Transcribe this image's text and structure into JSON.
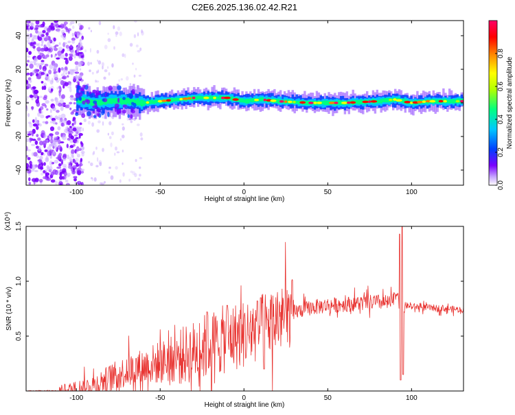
{
  "title": "C2E6.2025.136.02.42.R21",
  "colors": {
    "signal_line": "#e8312e",
    "spectrogram_scale": [
      "#ffffff",
      "#7a00ff",
      "#0040ff",
      "#00c8ff",
      "#00ff80",
      "#b0ff00",
      "#ffff00",
      "#ff8000",
      "#ff0000",
      "#ff0066"
    ]
  },
  "chart_data": [
    {
      "type": "heatmap",
      "subtype": "spectrogram",
      "xlabel": "Height of straight line (km)",
      "ylabel": "Frequency (Hz)",
      "xlim": [
        -130,
        131
      ],
      "ylim": [
        -49,
        49
      ],
      "x_ticks": [
        -100,
        -50,
        0,
        50,
        100
      ],
      "y_ticks": [
        -40,
        -20,
        0,
        20,
        40
      ],
      "colorbar": {
        "label": "Normalized spectral amplitude",
        "range": [
          0.0,
          1.0
        ],
        "ticks": [
          0.0,
          0.2,
          0.4,
          0.6,
          0.8
        ]
      },
      "ridge": {
        "frequency_hz": [
          [
            -100,
            2
          ],
          [
            -90,
            0
          ],
          [
            -80,
            1
          ],
          [
            -70,
            1
          ],
          [
            -60,
            0
          ],
          [
            -50,
            1
          ],
          [
            -40,
            2
          ],
          [
            -30,
            3
          ],
          [
            -20,
            3
          ],
          [
            -10,
            3
          ],
          [
            0,
            1
          ],
          [
            10,
            2
          ],
          [
            20,
            1
          ],
          [
            40,
            0
          ],
          [
            60,
            0
          ],
          [
            80,
            1
          ],
          [
            90,
            2
          ],
          [
            95,
            1
          ],
          [
            100,
            0
          ],
          [
            110,
            1
          ],
          [
            120,
            1
          ],
          [
            131,
            1
          ]
        ],
        "noise_region_below_km": -100
      }
    },
    {
      "type": "line",
      "xlabel": "Height of straight line (km)",
      "ylabel": "SNR (10 * v/v)",
      "y_multiplier": "(x10⁴)",
      "xlim": [
        -130,
        131
      ],
      "ylim": [
        0,
        1.5
      ],
      "x_ticks": [
        -100,
        -50,
        0,
        50,
        100
      ],
      "y_ticks": [
        0.5,
        1.0,
        1.5
      ],
      "series": [
        {
          "envelope": {
            "x": [
              -130,
              -110,
              -100,
              -90,
              -80,
              -70,
              -60,
              -50,
              -40,
              -30,
              -20,
              -10,
              0,
              10,
              20,
              30,
              40,
              50,
              60,
              70,
              80,
              88,
              90,
              92,
              93,
              94,
              95,
              96,
              100,
              110,
              120,
              131
            ],
            "y": [
              0.0,
              0.0,
              0.02,
              0.05,
              0.12,
              0.18,
              0.22,
              0.26,
              0.3,
              0.36,
              0.42,
              0.48,
              0.52,
              0.58,
              0.65,
              0.72,
              0.76,
              0.78,
              0.79,
              0.8,
              0.81,
              0.8,
              0.85,
              0.9,
              0.72,
              0.75,
              0.6,
              0.78,
              0.77,
              0.76,
              0.75,
              0.74
            ]
          },
          "spikes": [
            {
              "x": 93,
              "y": 1.43
            },
            {
              "x": 94.5,
              "y": 1.5
            },
            {
              "x": 93.5,
              "y": 0.1
            },
            {
              "x": 95,
              "y": 0.15
            },
            {
              "x": 10,
              "y": 0.85
            },
            {
              "x": 8,
              "y": 0.82
            },
            {
              "x": -22,
              "y": 0.72
            },
            {
              "x": -10,
              "y": 0.78
            },
            {
              "x": 12,
              "y": 0.2
            }
          ]
        }
      ]
    }
  ]
}
